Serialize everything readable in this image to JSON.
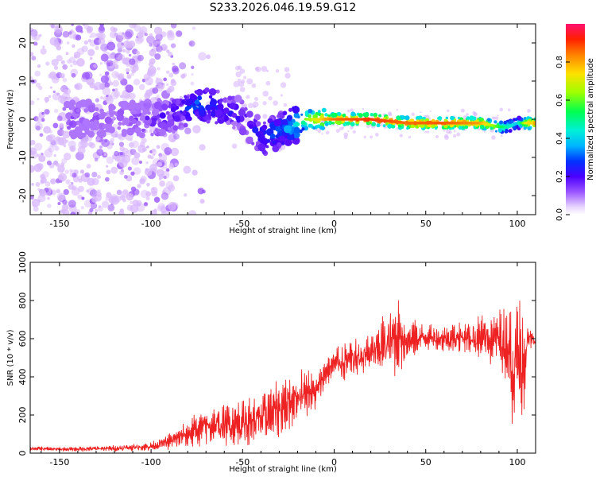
{
  "figure": {
    "title": "S233.2026.046.19.59.G12"
  },
  "colors": {
    "snr_line": "#ee2222",
    "axis": "#000000",
    "scatter_light": "#d9b8ff",
    "scatter_mid": "#9a55ff",
    "scatter_dark": "#5a00e6"
  },
  "chart_data": [
    {
      "type": "heatmap",
      "title": "S233.2026.046.19.59.G12",
      "xlabel": "Height of straight line (km)",
      "ylabel": "Frequency (Hz)",
      "xlim": [
        -166,
        110
      ],
      "ylim": [
        -25,
        25
      ],
      "xticks": [
        -150,
        -100,
        -50,
        0,
        50,
        100
      ],
      "xtick_labels": [
        "-150",
        "-100",
        "-50",
        "0",
        "50",
        "100"
      ],
      "yticks": [
        -20,
        -10,
        0,
        10,
        20
      ],
      "ytick_labels": [
        "-20",
        "-10",
        "0",
        "10",
        "20"
      ],
      "colorbar": {
        "label": "Normalized spectral amplitude",
        "range": [
          0.0,
          1.0
        ],
        "ticks": [
          0.0,
          0.2,
          0.4,
          0.6,
          0.8
        ],
        "tick_labels": [
          "0.0",
          "0.2",
          "0.4",
          "0.6",
          "0.8"
        ],
        "colormap": "rainbow"
      },
      "ridge": {
        "description": "frequency track of peak amplitude vs height",
        "height_km": [
          -145,
          -120,
          -100,
          -85,
          -75,
          -65,
          -55,
          -45,
          -40,
          -35,
          -30,
          -25,
          -20,
          -15,
          -10,
          0,
          20,
          40,
          60,
          80,
          90,
          95,
          100,
          105,
          108
        ],
        "freq_hz": [
          0,
          0,
          0,
          2,
          4,
          3,
          2,
          -2,
          -5,
          -4,
          -3,
          -2,
          -1,
          0,
          0,
          0,
          0,
          -1,
          -1,
          -1,
          -2,
          -2,
          -1,
          -1,
          -1
        ],
        "amplitude": [
          0.12,
          0.1,
          0.15,
          0.2,
          0.3,
          0.25,
          0.2,
          0.2,
          0.25,
          0.3,
          0.3,
          0.35,
          0.45,
          0.65,
          0.75,
          0.9,
          0.95,
          0.9,
          0.92,
          0.85,
          0.6,
          0.5,
          0.4,
          0.75,
          0.8
        ]
      }
    },
    {
      "type": "line",
      "xlabel": "Height of straight line (km)",
      "ylabel": "SNR (10 * v/v)",
      "xlim": [
        -166,
        110
      ],
      "ylim": [
        0,
        1000
      ],
      "xticks": [
        -150,
        -100,
        -50,
        0,
        50,
        100
      ],
      "xtick_labels": [
        "-150",
        "-100",
        "-50",
        "0",
        "50",
        "100"
      ],
      "yticks": [
        0,
        200,
        400,
        600,
        800,
        1000
      ],
      "ytick_labels": [
        "0",
        "200",
        "400",
        "600",
        "800",
        "1000"
      ],
      "envelope": {
        "description": "baseline and oscillation amplitude of the SNR trace vs height",
        "x": [
          -166,
          -150,
          -120,
          -100,
          -90,
          -80,
          -70,
          -60,
          -50,
          -40,
          -30,
          -20,
          -15,
          -10,
          -5,
          0,
          5,
          10,
          20,
          30,
          35,
          40,
          50,
          60,
          70,
          80,
          90,
          95,
          98,
          100,
          102,
          104,
          106,
          110
        ],
        "base": [
          25,
          20,
          25,
          35,
          60,
          100,
          140,
          150,
          160,
          180,
          230,
          300,
          330,
          310,
          420,
          470,
          480,
          490,
          520,
          580,
          620,
          590,
          610,
          600,
          610,
          600,
          600,
          560,
          450,
          500,
          450,
          520,
          600,
          590
        ],
        "amplitude": [
          10,
          10,
          15,
          20,
          40,
          70,
          100,
          100,
          110,
          120,
          140,
          130,
          120,
          80,
          70,
          90,
          100,
          110,
          120,
          160,
          200,
          110,
          60,
          70,
          80,
          110,
          140,
          180,
          350,
          400,
          350,
          250,
          60,
          20
        ]
      }
    }
  ]
}
